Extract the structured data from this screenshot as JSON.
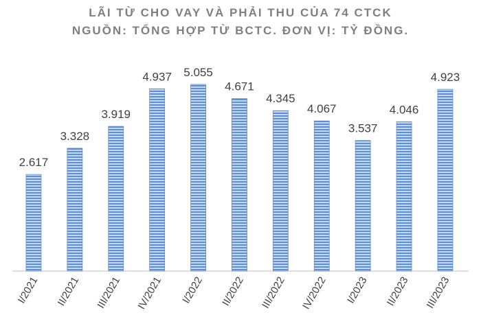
{
  "chart_data": {
    "type": "bar",
    "title": "LÃI TỪ CHO VAY VÀ PHẢI  THU CỦA 74 CTCK",
    "subtitle": "NGUỒN: TỔNG HỢP TỪ BCTC. ĐƠN VỊ: TỶ ĐỒNG.",
    "categories": [
      "I/2021",
      "II/2021",
      "III/2021",
      "IV/2021",
      "I/2022",
      "II/2022",
      "III/2022",
      "IV/2022",
      "I/2023",
      "II/2023",
      "III/2023"
    ],
    "values": [
      2617,
      3328,
      3919,
      4937,
      5055,
      4671,
      4345,
      4067,
      3537,
      4046,
      4923
    ],
    "value_labels": [
      "2.617",
      "3.328",
      "3.919",
      "4.937",
      "5.055",
      "4.671",
      "4.345",
      "4.067",
      "3.537",
      "4.046",
      "4.923"
    ],
    "color": "#5b8fd0"
  }
}
